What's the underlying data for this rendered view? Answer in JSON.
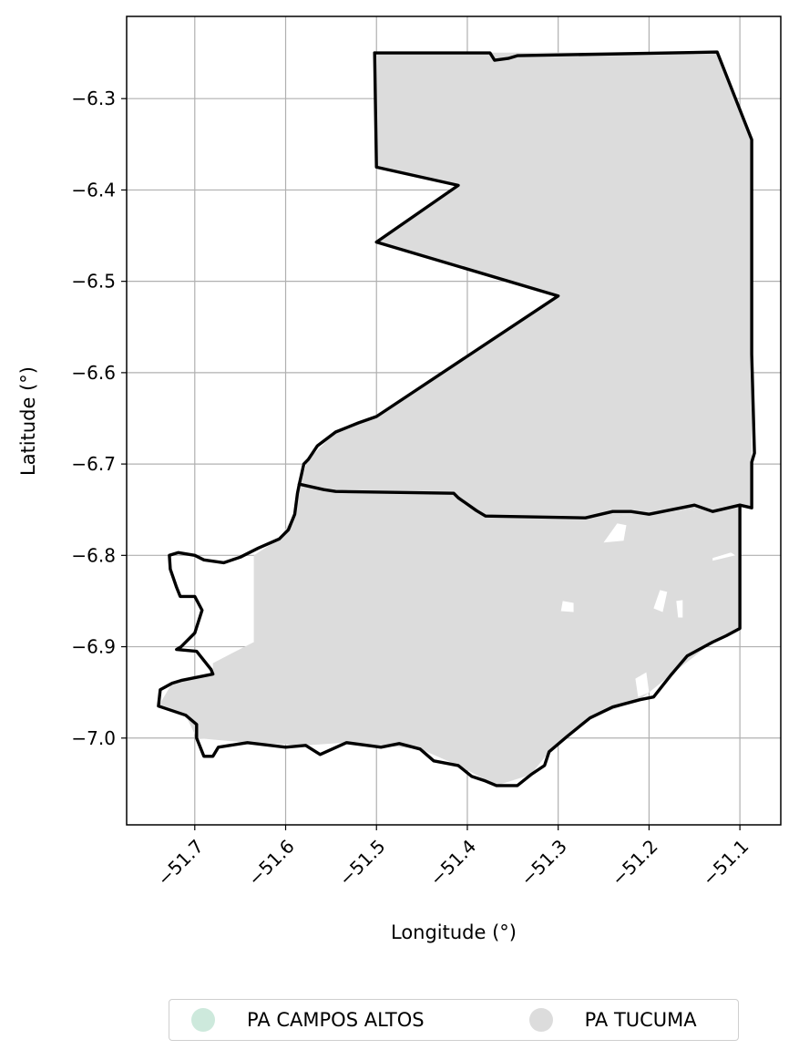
{
  "chart_data": {
    "type": "map",
    "title": "",
    "xlabel": "Longitude (°)",
    "ylabel": "Latitude (°)",
    "xlim": [
      -51.775,
      -51.055
    ],
    "ylim": [
      -7.095,
      -6.21
    ],
    "xticks": [
      {
        "value": -51.7,
        "label": "−51.7"
      },
      {
        "value": -51.6,
        "label": "−51.6"
      },
      {
        "value": -51.5,
        "label": "−51.5"
      },
      {
        "value": -51.4,
        "label": "−51.4"
      },
      {
        "value": -51.3,
        "label": "−51.3"
      },
      {
        "value": -51.2,
        "label": "−51.2"
      },
      {
        "value": -51.1,
        "label": "−51.1"
      }
    ],
    "yticks": [
      {
        "value": -6.3,
        "label": "−6.3"
      },
      {
        "value": -6.4,
        "label": "−6.4"
      },
      {
        "value": -6.5,
        "label": "−6.5"
      },
      {
        "value": -6.6,
        "label": "−6.6"
      },
      {
        "value": -6.7,
        "label": "−6.7"
      },
      {
        "value": -6.8,
        "label": "−6.8"
      },
      {
        "value": -6.9,
        "label": "−6.9"
      },
      {
        "value": -7.0,
        "label": "−7.0"
      }
    ],
    "grid": true,
    "legend_position": "bottom-center",
    "series": [
      {
        "name": "PA CAMPOS ALTOS",
        "color": "#cde9dc"
      },
      {
        "name": "PA TUCUMA",
        "color": "#dcdcdc"
      }
    ],
    "boundaries": [
      {
        "name": "northern-parcel-boundary",
        "points": [
          [
            -51.502,
            -6.25
          ],
          [
            -51.375,
            -6.25
          ],
          [
            -51.37,
            -6.258
          ],
          [
            -51.355,
            -6.256
          ],
          [
            -51.345,
            -6.253
          ],
          [
            -51.125,
            -6.249
          ],
          [
            -51.087,
            -6.345
          ],
          [
            -51.087,
            -6.58
          ],
          [
            -51.084,
            -6.688
          ],
          [
            -51.087,
            -6.698
          ],
          [
            -51.087,
            -6.748
          ],
          [
            -51.1,
            -6.745
          ],
          [
            -51.13,
            -6.752
          ],
          [
            -51.15,
            -6.745
          ],
          [
            -51.2,
            -6.755
          ],
          [
            -51.22,
            -6.752
          ],
          [
            -51.24,
            -6.752
          ],
          [
            -51.27,
            -6.759
          ],
          [
            -51.38,
            -6.757
          ],
          [
            -51.39,
            -6.751
          ],
          [
            -51.41,
            -6.737
          ],
          [
            -51.415,
            -6.732
          ],
          [
            -51.545,
            -6.73
          ],
          [
            -51.558,
            -6.728
          ],
          [
            -51.585,
            -6.722
          ]
        ]
      },
      {
        "name": "southern-outer-boundary",
        "points": [
          [
            -51.585,
            -6.722
          ],
          [
            -51.587,
            -6.732
          ],
          [
            -51.59,
            -6.755
          ],
          [
            -51.597,
            -6.772
          ],
          [
            -51.607,
            -6.782
          ],
          [
            -51.63,
            -6.792
          ],
          [
            -51.65,
            -6.802
          ],
          [
            -51.668,
            -6.808
          ],
          [
            -51.69,
            -6.805
          ],
          [
            -51.7,
            -6.8
          ],
          [
            -51.718,
            -6.797
          ],
          [
            -51.728,
            -6.8
          ],
          [
            -51.727,
            -6.815
          ],
          [
            -51.72,
            -6.835
          ],
          [
            -51.716,
            -6.845
          ],
          [
            -51.7,
            -6.845
          ],
          [
            -51.692,
            -6.86
          ],
          [
            -51.7,
            -6.885
          ],
          [
            -51.715,
            -6.9
          ],
          [
            -51.72,
            -6.903
          ],
          [
            -51.698,
            -6.905
          ],
          [
            -51.682,
            -6.925
          ],
          [
            -51.68,
            -6.93
          ],
          [
            -51.715,
            -6.937
          ],
          [
            -51.725,
            -6.94
          ],
          [
            -51.738,
            -6.947
          ],
          [
            -51.74,
            -6.965
          ],
          [
            -51.71,
            -6.975
          ],
          [
            -51.698,
            -6.985
          ],
          [
            -51.698,
            -7.0
          ],
          [
            -51.69,
            -7.02
          ],
          [
            -51.68,
            -7.02
          ],
          [
            -51.674,
            -7.01
          ],
          [
            -51.642,
            -7.005
          ],
          [
            -51.6,
            -7.01
          ],
          [
            -51.578,
            -7.008
          ],
          [
            -51.562,
            -7.018
          ],
          [
            -51.533,
            -7.005
          ],
          [
            -51.495,
            -7.01
          ],
          [
            -51.475,
            -7.006
          ],
          [
            -51.452,
            -7.012
          ],
          [
            -51.437,
            -7.025
          ],
          [
            -51.41,
            -7.03
          ],
          [
            -51.395,
            -7.042
          ],
          [
            -51.38,
            -7.047
          ],
          [
            -51.368,
            -7.052
          ],
          [
            -51.345,
            -7.052
          ],
          [
            -51.33,
            -7.04
          ],
          [
            -51.315,
            -7.03
          ],
          [
            -51.31,
            -7.015
          ],
          [
            -51.29,
            -6.998
          ],
          [
            -51.265,
            -6.978
          ],
          [
            -51.24,
            -6.966
          ],
          [
            -51.21,
            -6.958
          ],
          [
            -51.195,
            -6.955
          ],
          [
            -51.175,
            -6.93
          ],
          [
            -51.158,
            -6.91
          ],
          [
            -51.13,
            -6.895
          ],
          [
            -51.115,
            -6.888
          ],
          [
            -51.1,
            -6.88
          ],
          [
            -51.1,
            -6.745
          ]
        ]
      },
      {
        "name": "northern-west-indent",
        "points": [
          [
            -51.502,
            -6.25
          ],
          [
            -51.5,
            -6.375
          ],
          [
            -51.41,
            -6.395
          ],
          [
            -51.5,
            -6.457
          ],
          [
            -51.3,
            -6.516
          ],
          [
            -51.5,
            -6.648
          ],
          [
            -51.52,
            -6.655
          ],
          [
            -51.545,
            -6.665
          ],
          [
            -51.565,
            -6.68
          ],
          [
            -51.575,
            -6.695
          ],
          [
            -51.58,
            -6.7
          ],
          [
            -51.585,
            -6.722
          ]
        ]
      }
    ],
    "fills": [
      {
        "name": "southern-parcel-fill",
        "series": "PA TUCUMA",
        "points": [
          [
            -51.585,
            -6.722
          ],
          [
            -51.545,
            -6.73
          ],
          [
            -51.415,
            -6.732
          ],
          [
            -51.38,
            -6.757
          ],
          [
            -51.27,
            -6.759
          ],
          [
            -51.2,
            -6.755
          ],
          [
            -51.1,
            -6.745
          ],
          [
            -51.1,
            -6.88
          ],
          [
            -51.13,
            -6.895
          ],
          [
            -51.175,
            -6.93
          ],
          [
            -51.21,
            -6.958
          ],
          [
            -51.265,
            -6.978
          ],
          [
            -51.31,
            -7.015
          ],
          [
            -51.33,
            -7.04
          ],
          [
            -51.368,
            -7.052
          ],
          [
            -51.41,
            -7.03
          ],
          [
            -51.452,
            -7.012
          ],
          [
            -51.533,
            -7.005
          ],
          [
            -51.578,
            -7.008
          ],
          [
            -51.642,
            -7.005
          ],
          [
            -51.698,
            -7.0
          ],
          [
            -51.71,
            -6.975
          ],
          [
            -51.74,
            -6.965
          ],
          [
            -51.725,
            -6.94
          ],
          [
            -51.68,
            -6.93
          ],
          [
            -51.68,
            -6.918
          ],
          [
            -51.655,
            -6.905
          ],
          [
            -51.635,
            -6.895
          ],
          [
            -51.635,
            -6.8
          ],
          [
            -51.607,
            -6.782
          ],
          [
            -51.59,
            -6.755
          ]
        ]
      },
      {
        "name": "northern-parcel-fill",
        "series": "PA TUCUMA",
        "points": [
          [
            -51.502,
            -6.25
          ],
          [
            -51.125,
            -6.249
          ],
          [
            -51.087,
            -6.345
          ],
          [
            -51.087,
            -6.748
          ],
          [
            -51.1,
            -6.745
          ],
          [
            -51.2,
            -6.755
          ],
          [
            -51.27,
            -6.759
          ],
          [
            -51.38,
            -6.757
          ],
          [
            -51.415,
            -6.732
          ],
          [
            -51.545,
            -6.73
          ],
          [
            -51.585,
            -6.722
          ],
          [
            -51.575,
            -6.695
          ],
          [
            -51.545,
            -6.665
          ],
          [
            -51.5,
            -6.648
          ],
          [
            -51.3,
            -6.516
          ],
          [
            -51.5,
            -6.457
          ],
          [
            -51.41,
            -6.395
          ],
          [
            -51.5,
            -6.375
          ]
        ]
      }
    ],
    "holes": [
      [
        [
          -51.235,
          -6.765
        ],
        [
          -51.225,
          -6.767
        ],
        [
          -51.228,
          -6.784
        ],
        [
          -51.25,
          -6.786
        ]
      ],
      [
        [
          -51.13,
          -6.803
        ],
        [
          -51.11,
          -6.797
        ],
        [
          -51.105,
          -6.8
        ],
        [
          -51.13,
          -6.806
        ]
      ],
      [
        [
          -51.295,
          -6.85
        ],
        [
          -51.283,
          -6.852
        ],
        [
          -51.283,
          -6.862
        ],
        [
          -51.297,
          -6.861
        ]
      ],
      [
        [
          -51.195,
          -6.858
        ],
        [
          -51.188,
          -6.838
        ],
        [
          -51.18,
          -6.84
        ],
        [
          -51.185,
          -6.862
        ]
      ],
      [
        [
          -51.17,
          -6.85
        ],
        [
          -51.163,
          -6.849
        ],
        [
          -51.163,
          -6.868
        ],
        [
          -51.168,
          -6.868
        ]
      ],
      [
        [
          -51.215,
          -6.935
        ],
        [
          -51.203,
          -6.928
        ],
        [
          -51.2,
          -6.95
        ],
        [
          -51.212,
          -6.955
        ]
      ]
    ]
  }
}
